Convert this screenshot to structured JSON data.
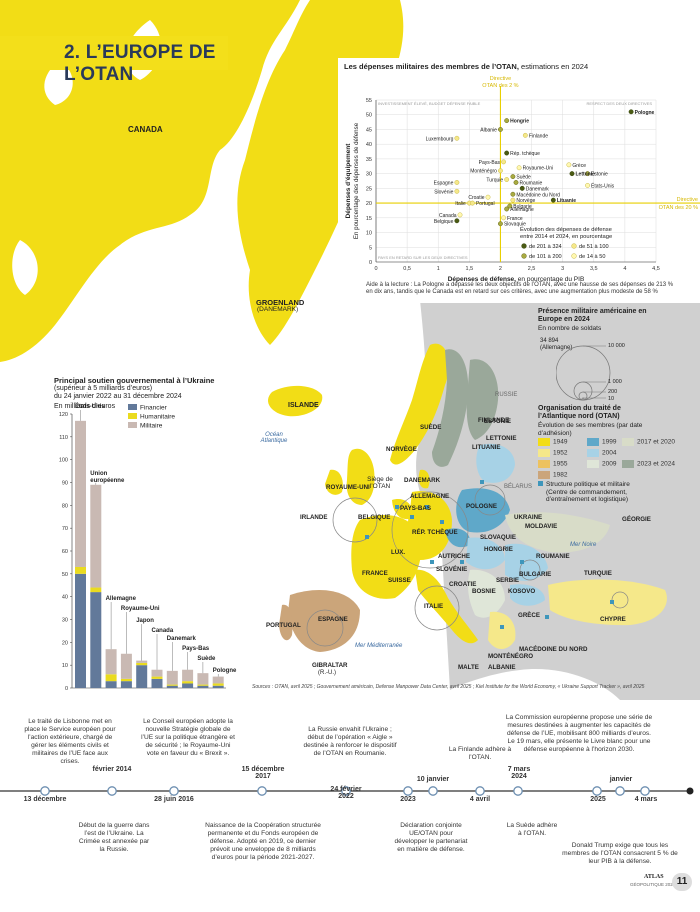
{
  "title": "2. L’EUROPE DE L’OTAN",
  "colors": {
    "yellow": "#f2dd16",
    "banner_text": "#2a3a5a",
    "grey_land": "#cccccc",
    "sea": "#ffffff",
    "olive": "#4a5a14",
    "light_yellow": "#f5e88a"
  },
  "map_labels": {
    "canada": "CANADA",
    "groenland": "GROENLAND",
    "groenland_sub": "(DANEMARK)",
    "islande": "ISLANDE",
    "ocean": "Océan Atlantique",
    "mer_noire": "Mer Noire",
    "mer_med": "Mer Méditerranée",
    "russie": "RUSSIE",
    "bielorussie": "BÉLARUS",
    "countries": [
      "FINLANDE",
      "SUÈDE",
      "NORVÈGE",
      "ESTONIE",
      "LETTONIE",
      "LITUANIE",
      "DANEMARK",
      "ROYAUME-UNI",
      "IRLANDE",
      "PAYS-BAS",
      "BELGIQUE",
      "ALLEMAGNE",
      "POLOGNE",
      "LUX.",
      "RÉP. TCHÈQUE",
      "SLOVAQUIE",
      "UKRAINE",
      "MOLDAVIE",
      "FRANCE",
      "SUISSE",
      "AUTRICHE",
      "HONGRIE",
      "ROUMANIE",
      "SLOVÉNIE",
      "CROATIE",
      "BOSNIE",
      "SERBIE",
      "BULGARIE",
      "KOSOVO",
      "MONTÉNÉGRO",
      "MACÉDOINE DU NORD",
      "ALBANIE",
      "GRÈCE",
      "TURQUIE",
      "GÉORGIE",
      "CHYPRE",
      "ITALIE",
      "ESPAGNE",
      "PORTUGAL",
      "MALTE",
      "GIBRALTAR"
    ],
    "gibraltar_sub": "(R.-U.)",
    "otan_seat": "Siège de l’OTAN"
  },
  "scatter": {
    "title_bold": "Les dépenses militaires des membres de l’OTAN,",
    "title_rest": " estimations en 2024",
    "xlabel_bold": "Dépenses de défense,",
    "xlabel_rest": " en pourcentage du PIB",
    "ylabel_bold": "Dépenses d’équipement",
    "ylabel_rest": "En pourcentage des dépenses de défense",
    "q_tl": "INVESTISSEMENT ÉLEVÉ, BUDGET DÉFENSE FAIBLE",
    "q_tr": "RESPECT DES DEUX DIRECTIVES",
    "q_bl": "PAYS EN RETARD SUR LES DEUX DIRECTIVES",
    "directive_x": [
      "Directive",
      "OTAN des 2 %"
    ],
    "directive_y": [
      "Directive",
      "OTAN des 20 %"
    ],
    "legend_title": [
      "Évolution des dépenses de défense",
      "entre 2014 et 2024, en pourcentage"
    ],
    "legend_items": [
      "de 201 à 324",
      "de 51 à 100",
      "de 101 à 200",
      "de 14 à 50"
    ],
    "note": [
      "Aide à la lecture : La Pologne a dépassé les deux objectifs de l’OTAN, avec une hausse de ses dépenses de 213 %",
      "en dix ans, tandis que le Canada est en retard sur ces critères, avec une augmentation plus modeste de 58 %"
    ]
  },
  "chart_data": [
    {
      "type": "scatter",
      "title": "Les dépenses militaires des membres de l’OTAN, estimations en 2024",
      "xlabel": "Dépenses de défense, en pourcentage du PIB",
      "ylabel": "Dépenses d’équipement En pourcentage des dépenses de défense",
      "xlim": [
        0,
        4.5
      ],
      "ylim": [
        0,
        55
      ],
      "xticks": [
        "0",
        "0,5",
        "1",
        "1,5",
        "2",
        "2,5",
        "3",
        "3,5",
        "4",
        "4,5"
      ],
      "yticks": [
        "0",
        "5",
        "10",
        "15",
        "20",
        "25",
        "30",
        "35",
        "40",
        "45",
        "50",
        "55"
      ],
      "points": [
        {
          "name": "Pologne",
          "x": 4.1,
          "y": 51,
          "bold": true,
          "cls": 4
        },
        {
          "name": "Hongrie",
          "x": 2.1,
          "y": 48,
          "bold": true,
          "cls": 3
        },
        {
          "name": "Albanie",
          "x": 2.0,
          "y": 45,
          "cls": 3
        },
        {
          "name": "Finlande",
          "x": 2.4,
          "y": 43,
          "cls": 2
        },
        {
          "name": "Luxembourg",
          "x": 1.3,
          "y": 42,
          "cls": 2
        },
        {
          "name": "Rép. tchèque",
          "x": 2.1,
          "y": 37,
          "cls": 4
        },
        {
          "name": "Pays-Bas",
          "x": 2.05,
          "y": 34,
          "cls": 2
        },
        {
          "name": "Grèce",
          "x": 3.1,
          "y": 33,
          "cls": 1
        },
        {
          "name": "Royaume-Uni",
          "x": 2.3,
          "y": 32,
          "cls": 1
        },
        {
          "name": "Monténégro",
          "x": 2.0,
          "y": 31,
          "cls": 2
        },
        {
          "name": "Estonie",
          "x": 3.4,
          "y": 30,
          "cls": 3
        },
        {
          "name": "Lettonie",
          "x": 3.15,
          "y": 30,
          "bold": true,
          "cls": 4
        },
        {
          "name": "Suède",
          "x": 2.2,
          "y": 29,
          "cls": 3
        },
        {
          "name": "Turquie",
          "x": 2.1,
          "y": 28,
          "cls": 2
        },
        {
          "name": "Espagne",
          "x": 1.3,
          "y": 27,
          "cls": 2
        },
        {
          "name": "Roumanie",
          "x": 2.25,
          "y": 27,
          "cls": 3
        },
        {
          "name": "États-Unis",
          "x": 3.4,
          "y": 26,
          "cls": 1
        },
        {
          "name": "Danemark",
          "x": 2.35,
          "y": 25,
          "cls": 4
        },
        {
          "name": "Slovénie",
          "x": 1.3,
          "y": 24,
          "cls": 2
        },
        {
          "name": "Macédoine du Nord",
          "x": 2.2,
          "y": 23,
          "cls": 3
        },
        {
          "name": "Croatie",
          "x": 1.8,
          "y": 22,
          "cls": 1
        },
        {
          "name": "Norvège",
          "x": 2.2,
          "y": 21,
          "cls": 2
        },
        {
          "name": "Italie",
          "x": 1.5,
          "y": 20,
          "cls": 2
        },
        {
          "name": "Portugal",
          "x": 1.55,
          "y": 20,
          "cls": 2
        },
        {
          "name": "Lituanie",
          "x": 2.85,
          "y": 21,
          "bold": true,
          "cls": 4
        },
        {
          "name": "Bulgarie",
          "x": 2.15,
          "y": 19,
          "cls": 3
        },
        {
          "name": "Allemagne",
          "x": 2.1,
          "y": 18,
          "cls": 3
        },
        {
          "name": "Canada",
          "x": 1.35,
          "y": 16,
          "cls": 1
        },
        {
          "name": "France",
          "x": 2.05,
          "y": 15,
          "cls": 1
        },
        {
          "name": "Belgique",
          "x": 1.3,
          "y": 14,
          "cls": 4
        },
        {
          "name": "Slovaquie",
          "x": 2.0,
          "y": 13,
          "cls": 3
        }
      ]
    },
    {
      "type": "bar",
      "title": "Principal soutien gouvernemental à l’Ukraine",
      "subtitle": [
        "(supérieur à 5 milliards d’euros)",
        "du 24 janvier 2022 au 31 décembre 2024"
      ],
      "ylabel": "En milliards d’euros",
      "ylim": [
        0,
        120
      ],
      "yticks": [
        "0",
        "10",
        "20",
        "30",
        "40",
        "50",
        "60",
        "70",
        "80",
        "90",
        "100",
        "110",
        "120"
      ],
      "categories": [
        "États-Unis",
        "Union européenne",
        "Allemagne",
        "Royaume-Uni",
        "Japon",
        "Canada",
        "Danemark",
        "Pays-Bas",
        "Suède",
        "Pologne"
      ],
      "series": [
        {
          "name": "Financier",
          "color": "#62799a",
          "values": [
            50,
            42,
            3,
            3,
            10,
            4,
            1,
            2,
            1,
            1
          ]
        },
        {
          "name": "Humanitaire",
          "color": "#eadb1f",
          "values": [
            3,
            2,
            3,
            1,
            1,
            1,
            0.5,
            1,
            0.5,
            1
          ]
        },
        {
          "name": "Militaire",
          "color": "#c9b9b3",
          "values": [
            64,
            45,
            11,
            11,
            1,
            3,
            6,
            5,
            5,
            3
          ]
        }
      ]
    }
  ],
  "troops": {
    "title": "Présence militaire américaine en Europe en 2024",
    "subtitle": "En nombre de soldats",
    "value_label": "34 894",
    "value_sub": "(Allemagne)",
    "scale": [
      "10 000",
      "1 000",
      "200",
      "10"
    ]
  },
  "members": {
    "title": "Organisation du traité de l’Atlantique nord (OTAN)",
    "subtitle": "Évolution de ses membres (par date d’adhésion)",
    "years": [
      {
        "label": "1949",
        "color": "#f2dd16"
      },
      {
        "label": "1999",
        "color": "#5fa8c9"
      },
      {
        "label": "2017 et 2020",
        "color": "#d8dcc8"
      },
      {
        "label": "1952",
        "color": "#f5e88a"
      },
      {
        "label": "2004",
        "color": "#a7d2e6"
      },
      {
        "label": "1955",
        "color": "#edc25e"
      },
      {
        "label": "2009",
        "color": "#dfe6d8"
      },
      {
        "label": "2023 et 2024",
        "color": "#9aa89a"
      },
      {
        "label": "1982",
        "color": "#cba57a"
      }
    ],
    "structure": [
      "Structure politique et militaire",
      "(Centre de commandement,",
      "d’entraînement et logistique)"
    ]
  },
  "sources": "Sources : OTAN, avril 2025 ; Gouvernement américain, Defense Manpower Data Center, avril 2025 ; Kiel Institute for the World Economy, « Ukraine Support Tracker », avril 2025",
  "timeline": {
    "dates": [
      "13 décembre",
      "février 2014",
      "28 juin 2016",
      "15 décembre 2017",
      "24 février 2022",
      "2023",
      "10 janvier",
      "4 avril",
      "7 mars 2024",
      "2025",
      "janvier",
      "4 mars"
    ],
    "notes_top": [
      "Le traité de Lisbonne met en place le Service européen pour l’action extérieure, chargé de gérer les éléments civils et militaires de l’UE face aux crises.",
      "Le Conseil européen adopte la nouvelle Stratégie globale de l’UE sur la politique étrangère et de sécurité ; le Royaume-Uni vote en faveur du « Brexit ».",
      "La Russie envahit l’Ukraine ; début de l’opération « Aigle » destinée à renforcer le dispositif de l’OTAN en Roumanie.",
      "La Finlande adhère à l’OTAN.",
      "La Commission européenne propose une série de mesures destinées à augmenter les capacités de défense de l’UE, mobilisant 800 milliards d’euros. Le 19 mars, elle présente le Livre blanc pour une défense européenne à l’horizon 2030."
    ],
    "notes_bottom": [
      "Début de la guerre dans l’est de l’Ukraine. La Crimée est annexée par la Russie.",
      "Naissance de la Coopération structurée permanente et du Fonds européen de défense. Adopté en 2019, ce dernier prévoit une enveloppe de 8 milliards d’euros pour la période 2021-2027.",
      "Déclaration conjointe UE/OTAN pour développer le partenariat en matière de défense.",
      "La Suède adhère à l’OTAN.",
      "Donald Trump exige que tous les membres de l’OTAN consacrent 5 % de leur PIB à la défense."
    ]
  },
  "footer": {
    "brand": "ATLAS",
    "brand_sub": "GÉOPOLITIQUE 2025",
    "page": "11"
  }
}
